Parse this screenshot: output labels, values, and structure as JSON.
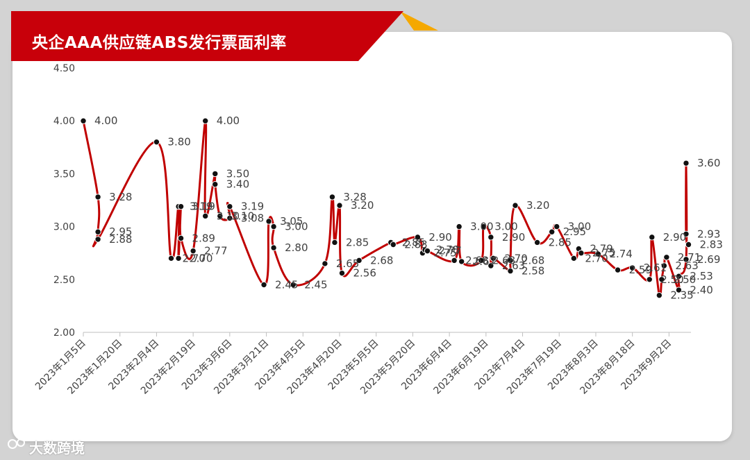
{
  "header": {
    "title": "央企AAA供应链ABS发行票面利率"
  },
  "watermark": {
    "text": "大数跨境"
  },
  "colors": {
    "line": "#c00000",
    "marker": "#111111",
    "banner": "#c8000a",
    "accent": "#f5a800"
  },
  "chart_data": {
    "type": "line",
    "title": "央企AAA供应链ABS发行票面利率",
    "xlabel": "",
    "ylabel": "",
    "ylim": [
      2.0,
      4.5
    ],
    "yticks": [
      "2.00",
      "2.50",
      "3.00",
      "3.50",
      "4.00",
      "4.50"
    ],
    "xlim": [
      "2023-01-05",
      "2023-09-11"
    ],
    "xticks": [
      "2023年1月5日",
      "2023年1月20日",
      "2023年2月4日",
      "2023年2月19日",
      "2023年3月6日",
      "2023年3月21日",
      "2023年4月5日",
      "2023年4月20日",
      "2023年5月5日",
      "2023年5月20日",
      "2023年6月4日",
      "2023年6月19日",
      "2023年7月4日",
      "2023年7月19日",
      "2023年8月3日",
      "2023年8月18日",
      "2023年9月2日"
    ],
    "grid": false,
    "legend": "none",
    "series": [
      {
        "points": [
          {
            "x": "2023-01-05",
            "y": 4.0,
            "label": "4.00"
          },
          {
            "x": "2023-01-11",
            "y": 3.28,
            "label": "3.28"
          },
          {
            "x": "2023-01-11",
            "y": 2.95,
            "label": "2.95"
          },
          {
            "x": "2023-01-11",
            "y": 2.88,
            "label": "2.88"
          },
          {
            "x": "2023-02-04",
            "y": 3.8,
            "label": "3.80"
          },
          {
            "x": "2023-02-10",
            "y": 2.7,
            "label": "2.70"
          },
          {
            "x": "2023-02-13",
            "y": 3.19,
            "label": "3.19"
          },
          {
            "x": "2023-02-13",
            "y": 2.7,
            "label": "2.70"
          },
          {
            "x": "2023-02-14",
            "y": 3.19,
            "label": "3.19"
          },
          {
            "x": "2023-02-14",
            "y": 2.89,
            "label": "2.89"
          },
          {
            "x": "2023-02-19",
            "y": 2.77,
            "label": "2.77"
          },
          {
            "x": "2023-02-24",
            "y": 4.0,
            "label": "4.00"
          },
          {
            "x": "2023-02-24",
            "y": 3.1,
            "label": "3.10"
          },
          {
            "x": "2023-02-28",
            "y": 3.5,
            "label": "3.50"
          },
          {
            "x": "2023-02-28",
            "y": 3.4,
            "label": "3.40"
          },
          {
            "x": "2023-03-02",
            "y": 3.1,
            "label": "3.10"
          },
          {
            "x": "2023-03-06",
            "y": 3.08,
            "label": "3.08"
          },
          {
            "x": "2023-03-06",
            "y": 3.19,
            "label": "3.19"
          },
          {
            "x": "2023-03-20",
            "y": 2.45,
            "label": "2.45"
          },
          {
            "x": "2023-03-22",
            "y": 3.05,
            "label": "3.05"
          },
          {
            "x": "2023-03-24",
            "y": 3.0,
            "label": "3.00"
          },
          {
            "x": "2023-03-24",
            "y": 2.8,
            "label": "2.80"
          },
          {
            "x": "2023-04-01",
            "y": 2.45,
            "label": "2.45"
          },
          {
            "x": "2023-04-14",
            "y": 2.65,
            "label": "2.65"
          },
          {
            "x": "2023-04-17",
            "y": 3.28,
            "label": "3.28"
          },
          {
            "x": "2023-04-18",
            "y": 2.85,
            "label": "2.85"
          },
          {
            "x": "2023-04-20",
            "y": 3.2,
            "label": "3.20"
          },
          {
            "x": "2023-04-21",
            "y": 2.56,
            "label": "2.56"
          },
          {
            "x": "2023-04-28",
            "y": 2.68,
            "label": "2.68"
          },
          {
            "x": "2023-05-11",
            "y": 2.85,
            "label": "2.85"
          },
          {
            "x": "2023-05-12",
            "y": 2.83,
            "label": "2.83"
          },
          {
            "x": "2023-05-22",
            "y": 2.9,
            "label": "2.90"
          },
          {
            "x": "2023-05-24",
            "y": 2.75,
            "label": "2.75"
          },
          {
            "x": "2023-05-25",
            "y": 2.78,
            "label": "2.78"
          },
          {
            "x": "2023-05-26",
            "y": 2.77,
            "label": "2.77"
          },
          {
            "x": "2023-06-06",
            "y": 2.68,
            "label": "2.68"
          },
          {
            "x": "2023-06-08",
            "y": 3.0,
            "label": "3.00"
          },
          {
            "x": "2023-06-09",
            "y": 2.67,
            "label": "2.67"
          },
          {
            "x": "2023-06-17",
            "y": 2.68,
            "label": "2.68"
          },
          {
            "x": "2023-06-18",
            "y": 3.0,
            "label": "3.00"
          },
          {
            "x": "2023-06-21",
            "y": 2.9,
            "label": "2.90"
          },
          {
            "x": "2023-06-21",
            "y": 2.63,
            "label": "2.63"
          },
          {
            "x": "2023-06-22",
            "y": 2.7,
            "label": "2.70"
          },
          {
            "x": "2023-06-29",
            "y": 2.58,
            "label": "2.58"
          },
          {
            "x": "2023-06-29",
            "y": 2.68,
            "label": "2.68"
          },
          {
            "x": "2023-07-01",
            "y": 3.2,
            "label": "3.20"
          },
          {
            "x": "2023-07-10",
            "y": 2.85,
            "label": "2.85"
          },
          {
            "x": "2023-07-16",
            "y": 2.95,
            "label": "2.95"
          },
          {
            "x": "2023-07-18",
            "y": 3.0,
            "label": "3.00"
          },
          {
            "x": "2023-07-25",
            "y": 2.7,
            "label": "2.70"
          },
          {
            "x": "2023-07-27",
            "y": 2.79,
            "label": "2.79"
          },
          {
            "x": "2023-07-28",
            "y": 2.75,
            "label": "2.75"
          },
          {
            "x": "2023-08-04",
            "y": 2.74,
            "label": "2.74"
          },
          {
            "x": "2023-08-12",
            "y": 2.59,
            "label": "2.59"
          },
          {
            "x": "2023-08-18",
            "y": 2.61,
            "label": "2.61"
          },
          {
            "x": "2023-08-25",
            "y": 2.5,
            "label": "2.50"
          },
          {
            "x": "2023-08-26",
            "y": 2.9,
            "label": "2.90"
          },
          {
            "x": "2023-08-29",
            "y": 2.35,
            "label": "2.35"
          },
          {
            "x": "2023-08-30",
            "y": 2.5,
            "label": "2.50"
          },
          {
            "x": "2023-08-31",
            "y": 2.63,
            "label": "2.63"
          },
          {
            "x": "2023-09-01",
            "y": 2.71,
            "label": "2.71"
          },
          {
            "x": "2023-09-06",
            "y": 2.4,
            "label": "2.40"
          },
          {
            "x": "2023-09-06",
            "y": 2.53,
            "label": "2.53"
          },
          {
            "x": "2023-09-09",
            "y": 2.69,
            "label": "2.69"
          },
          {
            "x": "2023-09-09",
            "y": 3.6,
            "label": "3.60"
          },
          {
            "x": "2023-09-09",
            "y": 2.93,
            "label": "2.93"
          },
          {
            "x": "2023-09-10",
            "y": 2.83,
            "label": "2.83"
          }
        ]
      }
    ]
  }
}
